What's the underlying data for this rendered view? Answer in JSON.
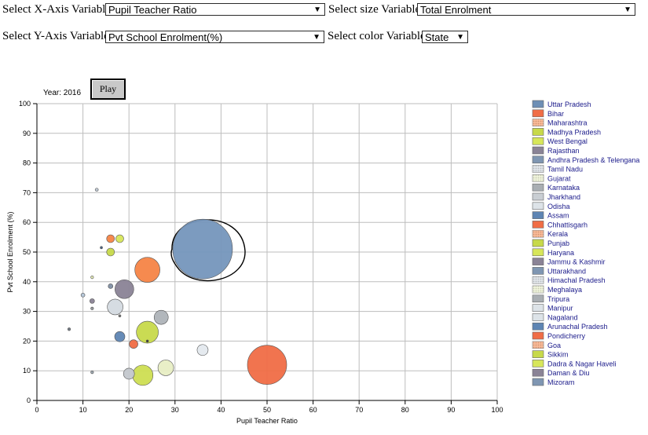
{
  "controls": {
    "x_label": "Select X-Axis Variable",
    "x_value": "Pupil Teacher Ratio",
    "size_label": "Select size Variable",
    "size_value": "Total Enrolment",
    "y_label": "Select Y-Axis Variable",
    "y_value": "Pvt School Enrolment(%)",
    "color_label": "Select color Variable",
    "color_value": "State"
  },
  "year_text": "Year: 2016",
  "play_label": "Play",
  "chart_data": {
    "type": "scatter",
    "xlabel": "Pupil Teacher Ratio",
    "ylabel": "Pvt School Enrolment (%)",
    "xlim": [
      0,
      100
    ],
    "ylim": [
      0,
      100
    ],
    "xticks": [
      "0",
      "10",
      "20",
      "30",
      "40",
      "50",
      "60",
      "70",
      "80",
      "90",
      "100"
    ],
    "yticks": [
      "0",
      "10",
      "20",
      "30",
      "40",
      "50",
      "60",
      "70",
      "80",
      "90",
      "100"
    ],
    "grid": true,
    "legend_position": "right",
    "points": [
      {
        "state": "Uttar Pradesh",
        "x": 36,
        "y": 51,
        "size": 38,
        "color": "#7596bc",
        "highlight": true
      },
      {
        "state": "Bihar",
        "x": 50,
        "y": 12,
        "size": 25,
        "color": "#f06d46"
      },
      {
        "state": "Maharashtra",
        "x": 24,
        "y": 44,
        "size": 16,
        "color": "#f58446"
      },
      {
        "state": "Madhya Pradesh",
        "x": 24,
        "y": 23,
        "size": 14,
        "color": "#c7d94a"
      },
      {
        "state": "West Bengal",
        "x": 23,
        "y": 8.5,
        "size": 13,
        "color": "#cdde52"
      },
      {
        "state": "Rajasthan",
        "x": 19,
        "y": 37.5,
        "size": 12,
        "color": "#8a8396"
      },
      {
        "state": "Andhra Pradesh & Telengana",
        "x": 36,
        "y": 17,
        "size": 7,
        "color": "#e4e9ee"
      },
      {
        "state": "Tamil Nadu",
        "x": 17,
        "y": 31.5,
        "size": 10,
        "color": "#d4dae0"
      },
      {
        "state": "Gujarat",
        "x": 28,
        "y": 11,
        "size": 10,
        "color": "#e8eec4"
      },
      {
        "state": "Karnataka",
        "x": 27,
        "y": 28,
        "size": 9,
        "color": "#aeb3b8"
      },
      {
        "state": "Jharkhand",
        "x": 20,
        "y": 9,
        "size": 7,
        "color": "#c3c7cc"
      },
      {
        "state": "Odisha",
        "x": 10,
        "y": 35.5,
        "size": 2.5,
        "color": "#b4c6d8"
      },
      {
        "state": "Assam",
        "x": 18,
        "y": 21.5,
        "size": 6.5,
        "color": "#5e85b3"
      },
      {
        "state": "Chhattisgarh",
        "x": 21,
        "y": 19,
        "size": 5.5,
        "color": "#f06d46"
      },
      {
        "state": "Kerala",
        "x": 16,
        "y": 54.5,
        "size": 5,
        "color": "#f58446"
      },
      {
        "state": "Punjab",
        "x": 16,
        "y": 50,
        "size": 5,
        "color": "#c7d94a"
      },
      {
        "state": "Haryana",
        "x": 18,
        "y": 54.5,
        "size": 5,
        "color": "#d7e65a"
      },
      {
        "state": "Jammu & Kashmir",
        "x": 12,
        "y": 33.5,
        "size": 3,
        "color": "#8a8396"
      },
      {
        "state": "Uttarakhand",
        "x": 16,
        "y": 38.5,
        "size": 3,
        "color": "#7f8fa4"
      },
      {
        "state": "Himachal Pradesh",
        "x": 13,
        "y": 71,
        "size": 2,
        "color": "#b8c3ce"
      },
      {
        "state": "Meghalaya",
        "x": 12,
        "y": 41.5,
        "size": 1.8,
        "color": "#e0e7b0"
      },
      {
        "state": "Tripura",
        "x": 12,
        "y": 31,
        "size": 1.8,
        "color": "#8f9498"
      },
      {
        "state": "Manipur",
        "x": 7,
        "y": 24,
        "size": 1.8,
        "color": "#6e7681"
      },
      {
        "state": "Nagaland",
        "x": 12,
        "y": 9.5,
        "size": 1.8,
        "color": "#99a3ad"
      },
      {
        "state": "Arunachal Pradesh",
        "x": 14,
        "y": 51.5,
        "size": 1.5,
        "color": "#3e5d82"
      },
      {
        "state": "Pondicherry",
        "x": 18,
        "y": 28.5,
        "size": 1.5,
        "color": "#777777"
      },
      {
        "state": "Goa",
        "x": 24,
        "y": 20,
        "size": 1.5,
        "color": "#333333"
      }
    ],
    "legend": [
      {
        "name": "Uttar Pradesh",
        "color": "#6e8fb5",
        "pattern": "solid"
      },
      {
        "name": "Bihar",
        "color": "#f06d46",
        "pattern": "solid"
      },
      {
        "name": "Maharashtra",
        "color": "#f58446",
        "pattern": "dots"
      },
      {
        "name": "Madhya Pradesh",
        "color": "#c7d94a",
        "pattern": "solid"
      },
      {
        "name": "West Bengal",
        "color": "#d7e65a",
        "pattern": "solid"
      },
      {
        "name": "Rajasthan",
        "color": "#8a8396",
        "pattern": "solid"
      },
      {
        "name": "Andhra Pradesh & Telengana",
        "color": "#7f96b2",
        "pattern": "solid"
      },
      {
        "name": "Tamil Nadu",
        "color": "#c9d0d8",
        "pattern": "dots"
      },
      {
        "name": "Gujarat",
        "color": "#e4ebc0",
        "pattern": "dots"
      },
      {
        "name": "Karnataka",
        "color": "#a9aeb3",
        "pattern": "solid"
      },
      {
        "name": "Jharkhand",
        "color": "#c9ced3",
        "pattern": "solid"
      },
      {
        "name": "Odisha",
        "color": "#dde3e8",
        "pattern": "solid"
      },
      {
        "name": "Assam",
        "color": "#5e85b3",
        "pattern": "solid"
      },
      {
        "name": "Chhattisgarh",
        "color": "#f06d46",
        "pattern": "solid"
      },
      {
        "name": "Kerala",
        "color": "#f58446",
        "pattern": "dots"
      },
      {
        "name": "Punjab",
        "color": "#c7d94a",
        "pattern": "solid"
      },
      {
        "name": "Haryana",
        "color": "#d7e65a",
        "pattern": "solid"
      },
      {
        "name": "Jammu & Kashmir",
        "color": "#8a8396",
        "pattern": "solid"
      },
      {
        "name": "Uttarakhand",
        "color": "#7f96b2",
        "pattern": "solid"
      },
      {
        "name": "Himachal Pradesh",
        "color": "#c9d0d8",
        "pattern": "dots"
      },
      {
        "name": "Meghalaya",
        "color": "#e4ebc0",
        "pattern": "dots"
      },
      {
        "name": "Tripura",
        "color": "#a9aeb3",
        "pattern": "solid"
      },
      {
        "name": "Manipur",
        "color": "#dde3e8",
        "pattern": "solid"
      },
      {
        "name": "Nagaland",
        "color": "#dde3e8",
        "pattern": "solid"
      },
      {
        "name": "Arunachal Pradesh",
        "color": "#5e85b3",
        "pattern": "solid"
      },
      {
        "name": "Pondicherry",
        "color": "#f06d46",
        "pattern": "solid"
      },
      {
        "name": "Goa",
        "color": "#f58446",
        "pattern": "dots"
      },
      {
        "name": "Sikkim",
        "color": "#c7d94a",
        "pattern": "solid"
      },
      {
        "name": "Dadra & Nagar Haveli",
        "color": "#d7e65a",
        "pattern": "solid"
      },
      {
        "name": "Daman & Diu",
        "color": "#8a8396",
        "pattern": "solid"
      },
      {
        "name": "Mizoram",
        "color": "#7f96b2",
        "pattern": "solid"
      }
    ]
  }
}
